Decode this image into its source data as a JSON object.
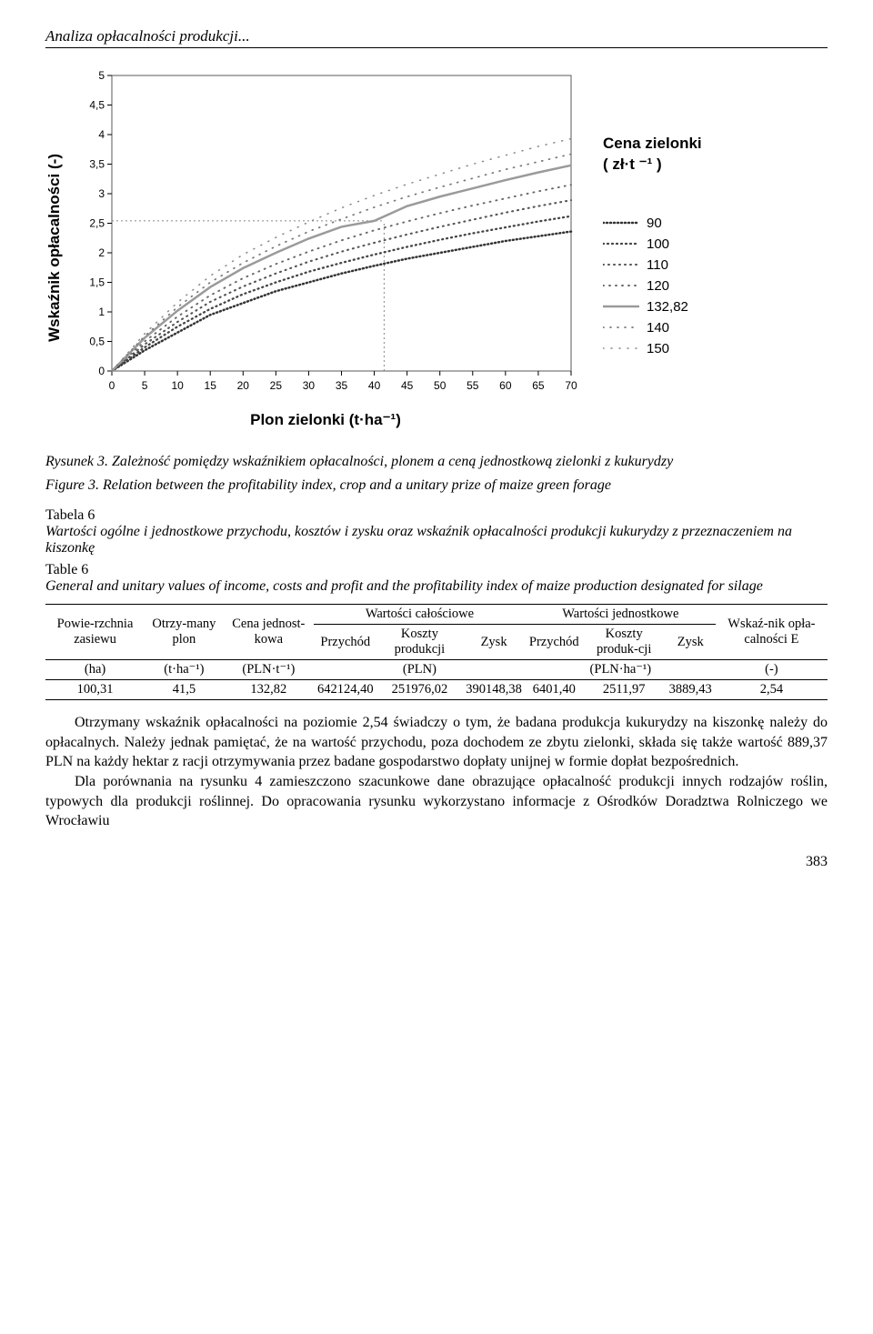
{
  "header": {
    "title": "Analiza opłacalności produkcji..."
  },
  "chart": {
    "type": "line",
    "x_label": "Plon zielonki   (t·ha⁻¹)",
    "y_label": "Wskaźnik opłacalności (-)",
    "legend_title": "Cena zielonki\n( zł·t ⁻¹ )",
    "background_color": "#ffffff",
    "plot_border_color": "#5a5a5a",
    "grid_color": "#d0d0d0",
    "axis_font": "Arial",
    "axis_fontsize": 12,
    "x": [
      0,
      5,
      10,
      15,
      20,
      25,
      30,
      35,
      40,
      45,
      50,
      55,
      60,
      65,
      70
    ],
    "xlim": [
      0,
      70
    ],
    "ylim": [
      0,
      5
    ],
    "y_ticks": [
      0,
      0.5,
      1,
      1.5,
      2,
      2.5,
      3,
      3.5,
      4,
      4.5,
      5
    ],
    "series": [
      {
        "label": "90",
        "style": "dot",
        "width": 2.5,
        "gap": 3,
        "color": "#333333",
        "y": [
          0,
          0.35,
          0.65,
          0.95,
          1.15,
          1.35,
          1.5,
          1.65,
          1.78,
          1.9,
          2.0,
          2.1,
          2.2,
          2.28,
          2.36
        ]
      },
      {
        "label": "100",
        "style": "dot",
        "width": 2.3,
        "gap": 4,
        "color": "#444444",
        "y": [
          0,
          0.4,
          0.75,
          1.05,
          1.3,
          1.5,
          1.68,
          1.83,
          1.97,
          2.1,
          2.22,
          2.33,
          2.43,
          2.53,
          2.62
        ]
      },
      {
        "label": "110",
        "style": "dot",
        "width": 2.1,
        "gap": 5,
        "color": "#555555",
        "y": [
          0,
          0.45,
          0.83,
          1.17,
          1.43,
          1.65,
          1.85,
          2.02,
          2.17,
          2.31,
          2.44,
          2.56,
          2.68,
          2.79,
          2.89
        ]
      },
      {
        "label": "120",
        "style": "dot",
        "width": 1.9,
        "gap": 6,
        "color": "#666666",
        "y": [
          0,
          0.5,
          0.92,
          1.28,
          1.57,
          1.81,
          2.02,
          2.21,
          2.38,
          2.53,
          2.67,
          2.8,
          2.92,
          3.04,
          3.15
        ]
      },
      {
        "label": "132,82",
        "style": "solid",
        "width": 2.5,
        "color": "#9a9a9a",
        "y": [
          0,
          0.56,
          1.02,
          1.42,
          1.74,
          2.0,
          2.24,
          2.44,
          2.54,
          2.79,
          2.95,
          3.09,
          3.23,
          3.36,
          3.48
        ]
      },
      {
        "label": "140",
        "style": "dot",
        "width": 1.7,
        "gap": 7,
        "color": "#777777",
        "y": [
          0,
          0.59,
          1.08,
          1.5,
          1.83,
          2.11,
          2.36,
          2.57,
          2.77,
          2.95,
          3.11,
          3.26,
          3.41,
          3.54,
          3.67
        ]
      },
      {
        "label": "150",
        "style": "dot",
        "width": 1.5,
        "gap": 8,
        "color": "#888888",
        "y": [
          0,
          0.63,
          1.16,
          1.61,
          1.97,
          2.26,
          2.52,
          2.76,
          2.97,
          3.16,
          3.33,
          3.5,
          3.65,
          3.8,
          3.93
        ]
      }
    ],
    "ref_lines": {
      "vx": 41.5,
      "hy": 2.54,
      "color": "#888888",
      "dash": "2 3"
    }
  },
  "captions": {
    "fig_pl": "Rysunek 3. Zależność pomiędzy wskaźnikiem opłacalności, plonem a ceną jednostkową zielonki z kukurydzy",
    "fig_en": "Figure 3. Relation between the profitability index, crop and a unitary prize of maize green forage",
    "tab_pl_no": "Tabela 6",
    "tab_pl": "Wartości ogólne i jednostkowe przychodu, kosztów i zysku oraz wskaźnik opłacalności produkcji kukurydzy z przeznaczeniem na kiszonkę",
    "tab_en_no": "Table 6",
    "tab_en": "General and unitary values of income, costs and profit and the profitability index of maize production designated for silage"
  },
  "table": {
    "headers": {
      "c1": "Powie-rzchnia zasiewu",
      "c2": "Otrzy-many plon",
      "c3": "Cena jednost-kowa",
      "g1": "Wartości całościowe",
      "g2": "Wartości jednostkowe",
      "c4": "Przychód",
      "c5": "Koszty produkcji",
      "c6": "Zysk",
      "c7": "Przychód",
      "c8": "Koszty produk-cji",
      "c9": "Zysk",
      "c10": "Wskaź-nik opła-calności E",
      "u1": "(ha)",
      "u2": "(t·ha⁻¹)",
      "u3": "(PLN·t⁻¹)",
      "u4": "(PLN)",
      "u5": "(PLN·ha⁻¹)",
      "u6": "(-)"
    },
    "row": {
      "c1": "100,31",
      "c2": "41,5",
      "c3": "132,82",
      "c4": "642124,40",
      "c5": "251976,02",
      "c6": "390148,38",
      "c7": "6401,40",
      "c8": "2511,97",
      "c9": "3889,43",
      "c10": "2,54"
    }
  },
  "body": {
    "p1": "Otrzymany wskaźnik opłacalności na poziomie 2,54 świadczy o tym, że badana produkcja kukurydzy na kiszonkę należy do opłacalnych. Należy jednak pamiętać, że na wartość przychodu, poza dochodem ze zbytu zielonki, składa się także wartość 889,37 PLN na każdy hektar z racji otrzymywania przez badane gospodarstwo dopłaty unijnej w formie dopłat bezpośrednich.",
    "p2": "Dla porównania na rysunku 4 zamieszczono szacunkowe dane obrazujące opłacalność produkcji innych rodzajów roślin, typowych dla produkcji roślinnej. Do opracowania rysunku wykorzystano informacje z Ośrodków Doradztwa Rolniczego we Wrocławiu"
  },
  "page": {
    "num": "383"
  }
}
